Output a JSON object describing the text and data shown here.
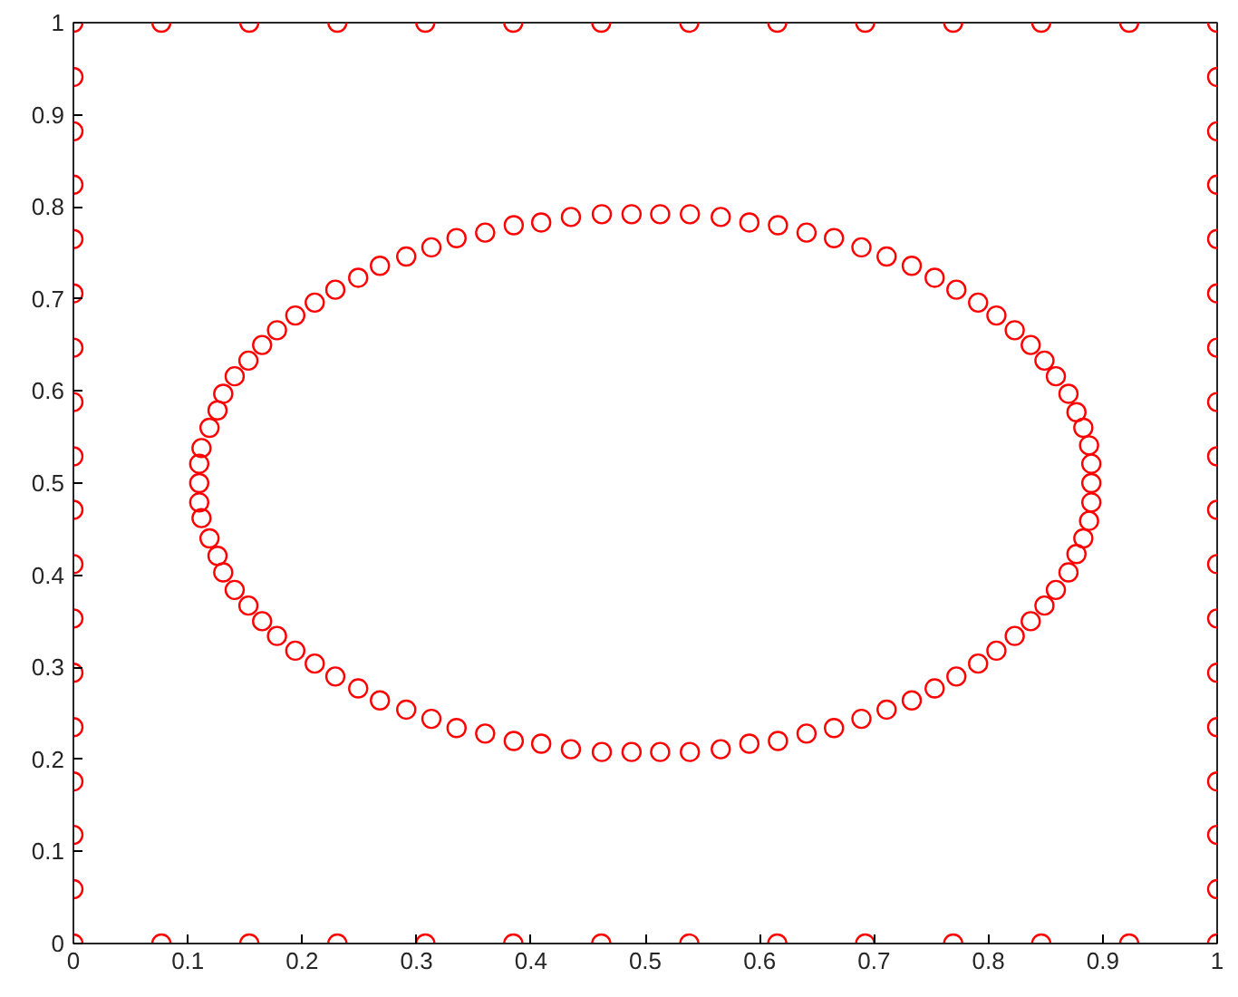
{
  "chart_data": {
    "type": "scatter",
    "marker": "circle",
    "grid": false,
    "xlim": [
      0,
      1
    ],
    "ylim": [
      0,
      1
    ],
    "xticks": [
      0,
      0.1,
      0.2,
      0.3,
      0.4,
      0.5,
      0.6,
      0.7,
      0.8,
      0.9,
      1
    ],
    "yticks": [
      0,
      0.1,
      0.2,
      0.3,
      0.4,
      0.5,
      0.6,
      0.7,
      0.8,
      0.9,
      1
    ],
    "series": [
      {
        "color": "#ff0000",
        "x": [
          0,
          0.0769,
          0.1538,
          0.2308,
          0.3077,
          0.3846,
          0.4615,
          0.5385,
          0.6154,
          0.6923,
          0.7692,
          0.8462,
          0.9231,
          1,
          0,
          0.0769,
          0.1538,
          0.2308,
          0.3077,
          0.3846,
          0.4615,
          0.5385,
          0.6154,
          0.6923,
          0.7692,
          0.8462,
          0.9231,
          1,
          0,
          0,
          0,
          0,
          0,
          0,
          0,
          0,
          0,
          0,
          0,
          0,
          0,
          0,
          0,
          0,
          1,
          1,
          1,
          1,
          1,
          1,
          1,
          1,
          1,
          1,
          1,
          1,
          1,
          1,
          1,
          1
        ],
        "values": [
          0,
          0,
          0,
          0,
          0,
          0,
          0,
          0,
          0,
          0,
          0,
          0,
          0,
          0,
          1,
          1,
          1,
          1,
          1,
          1,
          1,
          1,
          1,
          1,
          1,
          1,
          1,
          1,
          0.059,
          0.118,
          0.176,
          0.235,
          0.294,
          0.353,
          0.412,
          0.471,
          0.529,
          0.588,
          0.647,
          0.706,
          0.765,
          0.824,
          0.882,
          0.941,
          0.059,
          0.118,
          0.176,
          0.235,
          0.294,
          0.353,
          0.412,
          0.471,
          0.529,
          0.588,
          0.647,
          0.706,
          0.765,
          0.824,
          0.882,
          0.941
        ]
      },
      {
        "color": "#ff0000",
        "x": [
          0.11,
          0.11,
          0.112,
          0.119,
          0.126,
          0.131,
          0.141,
          0.153,
          0.165,
          0.178,
          0.194,
          0.211,
          0.229,
          0.249,
          0.268,
          0.291,
          0.313,
          0.335,
          0.36,
          0.385,
          0.409,
          0.435,
          0.462,
          0.488,
          0.513,
          0.539,
          0.566,
          0.591,
          0.616,
          0.641,
          0.665,
          0.689,
          0.711,
          0.733,
          0.753,
          0.772,
          0.791,
          0.807,
          0.823,
          0.837,
          0.849,
          0.859,
          0.87,
          0.877,
          0.883,
          0.888,
          0.89,
          0.89,
          0.89,
          0.888,
          0.883,
          0.877,
          0.87,
          0.859,
          0.849,
          0.837,
          0.823,
          0.807,
          0.791,
          0.772,
          0.753,
          0.733,
          0.711,
          0.689,
          0.665,
          0.641,
          0.616,
          0.591,
          0.566,
          0.539,
          0.513,
          0.488,
          0.462,
          0.435,
          0.409,
          0.385,
          0.36,
          0.335,
          0.313,
          0.291,
          0.268,
          0.249,
          0.229,
          0.211,
          0.194,
          0.178,
          0.165,
          0.153,
          0.141,
          0.131,
          0.126,
          0.119,
          0.112,
          0.11
        ],
        "values": [
          0.5,
          0.521,
          0.538,
          0.56,
          0.579,
          0.597,
          0.616,
          0.633,
          0.65,
          0.666,
          0.682,
          0.696,
          0.71,
          0.723,
          0.736,
          0.746,
          0.756,
          0.766,
          0.772,
          0.78,
          0.783,
          0.789,
          0.792,
          0.792,
          0.792,
          0.792,
          0.789,
          0.783,
          0.78,
          0.772,
          0.766,
          0.756,
          0.746,
          0.736,
          0.723,
          0.71,
          0.696,
          0.682,
          0.666,
          0.65,
          0.633,
          0.616,
          0.597,
          0.577,
          0.56,
          0.541,
          0.521,
          0.5,
          0.479,
          0.459,
          0.44,
          0.423,
          0.403,
          0.384,
          0.367,
          0.35,
          0.334,
          0.318,
          0.304,
          0.29,
          0.277,
          0.264,
          0.254,
          0.244,
          0.234,
          0.228,
          0.22,
          0.217,
          0.211,
          0.208,
          0.208,
          0.208,
          0.208,
          0.211,
          0.217,
          0.22,
          0.228,
          0.234,
          0.244,
          0.254,
          0.264,
          0.277,
          0.29,
          0.304,
          0.318,
          0.334,
          0.35,
          0.367,
          0.384,
          0.403,
          0.421,
          0.44,
          0.462,
          0.479
        ]
      }
    ]
  }
}
